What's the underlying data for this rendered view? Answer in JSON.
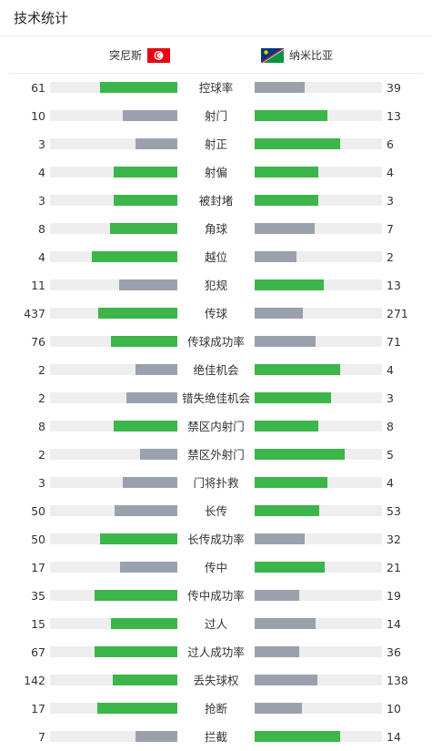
{
  "header": {
    "title": "技术统计"
  },
  "teams": {
    "home": {
      "name": "突尼斯",
      "flag_icon": "tunisia-flag-icon"
    },
    "away": {
      "name": "纳米比亚",
      "flag_icon": "namibia-flag-icon"
    }
  },
  "colors": {
    "win": "#3cb54a",
    "lose": "#9aa1ad",
    "track": "#eeeeee"
  },
  "stats": [
    {
      "label": "控球率",
      "home": "61",
      "away": "39",
      "home_fill": 0.61,
      "away_fill": 0.39,
      "leader": "home"
    },
    {
      "label": "射门",
      "home": "10",
      "away": "13",
      "home_fill": 0.43,
      "away_fill": 0.57,
      "leader": "away"
    },
    {
      "label": "射正",
      "home": "3",
      "away": "6",
      "home_fill": 0.33,
      "away_fill": 0.67,
      "leader": "away"
    },
    {
      "label": "射偏",
      "home": "4",
      "away": "4",
      "home_fill": 0.5,
      "away_fill": 0.5,
      "leader": "both"
    },
    {
      "label": "被封堵",
      "home": "3",
      "away": "3",
      "home_fill": 0.5,
      "away_fill": 0.5,
      "leader": "both"
    },
    {
      "label": "角球",
      "home": "8",
      "away": "7",
      "home_fill": 0.53,
      "away_fill": 0.47,
      "leader": "home"
    },
    {
      "label": "越位",
      "home": "4",
      "away": "2",
      "home_fill": 0.67,
      "away_fill": 0.33,
      "leader": "home"
    },
    {
      "label": "犯规",
      "home": "11",
      "away": "13",
      "home_fill": 0.46,
      "away_fill": 0.54,
      "leader": "away"
    },
    {
      "label": "传球",
      "home": "437",
      "away": "271",
      "home_fill": 0.62,
      "away_fill": 0.38,
      "leader": "home"
    },
    {
      "label": "传球成功率",
      "home": "76",
      "away": "71",
      "home_fill": 0.52,
      "away_fill": 0.48,
      "leader": "home"
    },
    {
      "label": "绝佳机会",
      "home": "2",
      "away": "4",
      "home_fill": 0.33,
      "away_fill": 0.67,
      "leader": "away"
    },
    {
      "label": "错失绝佳机会",
      "home": "2",
      "away": "3",
      "home_fill": 0.4,
      "away_fill": 0.6,
      "leader": "away"
    },
    {
      "label": "禁区内射门",
      "home": "8",
      "away": "8",
      "home_fill": 0.5,
      "away_fill": 0.5,
      "leader": "both"
    },
    {
      "label": "禁区外射门",
      "home": "2",
      "away": "5",
      "home_fill": 0.29,
      "away_fill": 0.71,
      "leader": "away"
    },
    {
      "label": "门将扑救",
      "home": "3",
      "away": "4",
      "home_fill": 0.43,
      "away_fill": 0.57,
      "leader": "away"
    },
    {
      "label": "长传",
      "home": "50",
      "away": "53",
      "home_fill": 0.49,
      "away_fill": 0.51,
      "leader": "away"
    },
    {
      "label": "长传成功率",
      "home": "50",
      "away": "32",
      "home_fill": 0.61,
      "away_fill": 0.39,
      "leader": "home"
    },
    {
      "label": "传中",
      "home": "17",
      "away": "21",
      "home_fill": 0.45,
      "away_fill": 0.55,
      "leader": "away"
    },
    {
      "label": "传中成功率",
      "home": "35",
      "away": "19",
      "home_fill": 0.65,
      "away_fill": 0.35,
      "leader": "home"
    },
    {
      "label": "过人",
      "home": "15",
      "away": "14",
      "home_fill": 0.52,
      "away_fill": 0.48,
      "leader": "home"
    },
    {
      "label": "过人成功率",
      "home": "67",
      "away": "36",
      "home_fill": 0.65,
      "away_fill": 0.35,
      "leader": "home"
    },
    {
      "label": "丢失球权",
      "home": "142",
      "away": "138",
      "home_fill": 0.51,
      "away_fill": 0.49,
      "leader": "home"
    },
    {
      "label": "抢断",
      "home": "17",
      "away": "10",
      "home_fill": 0.63,
      "away_fill": 0.37,
      "leader": "home"
    },
    {
      "label": "拦截",
      "home": "7",
      "away": "14",
      "home_fill": 0.33,
      "away_fill": 0.67,
      "leader": "away"
    }
  ]
}
